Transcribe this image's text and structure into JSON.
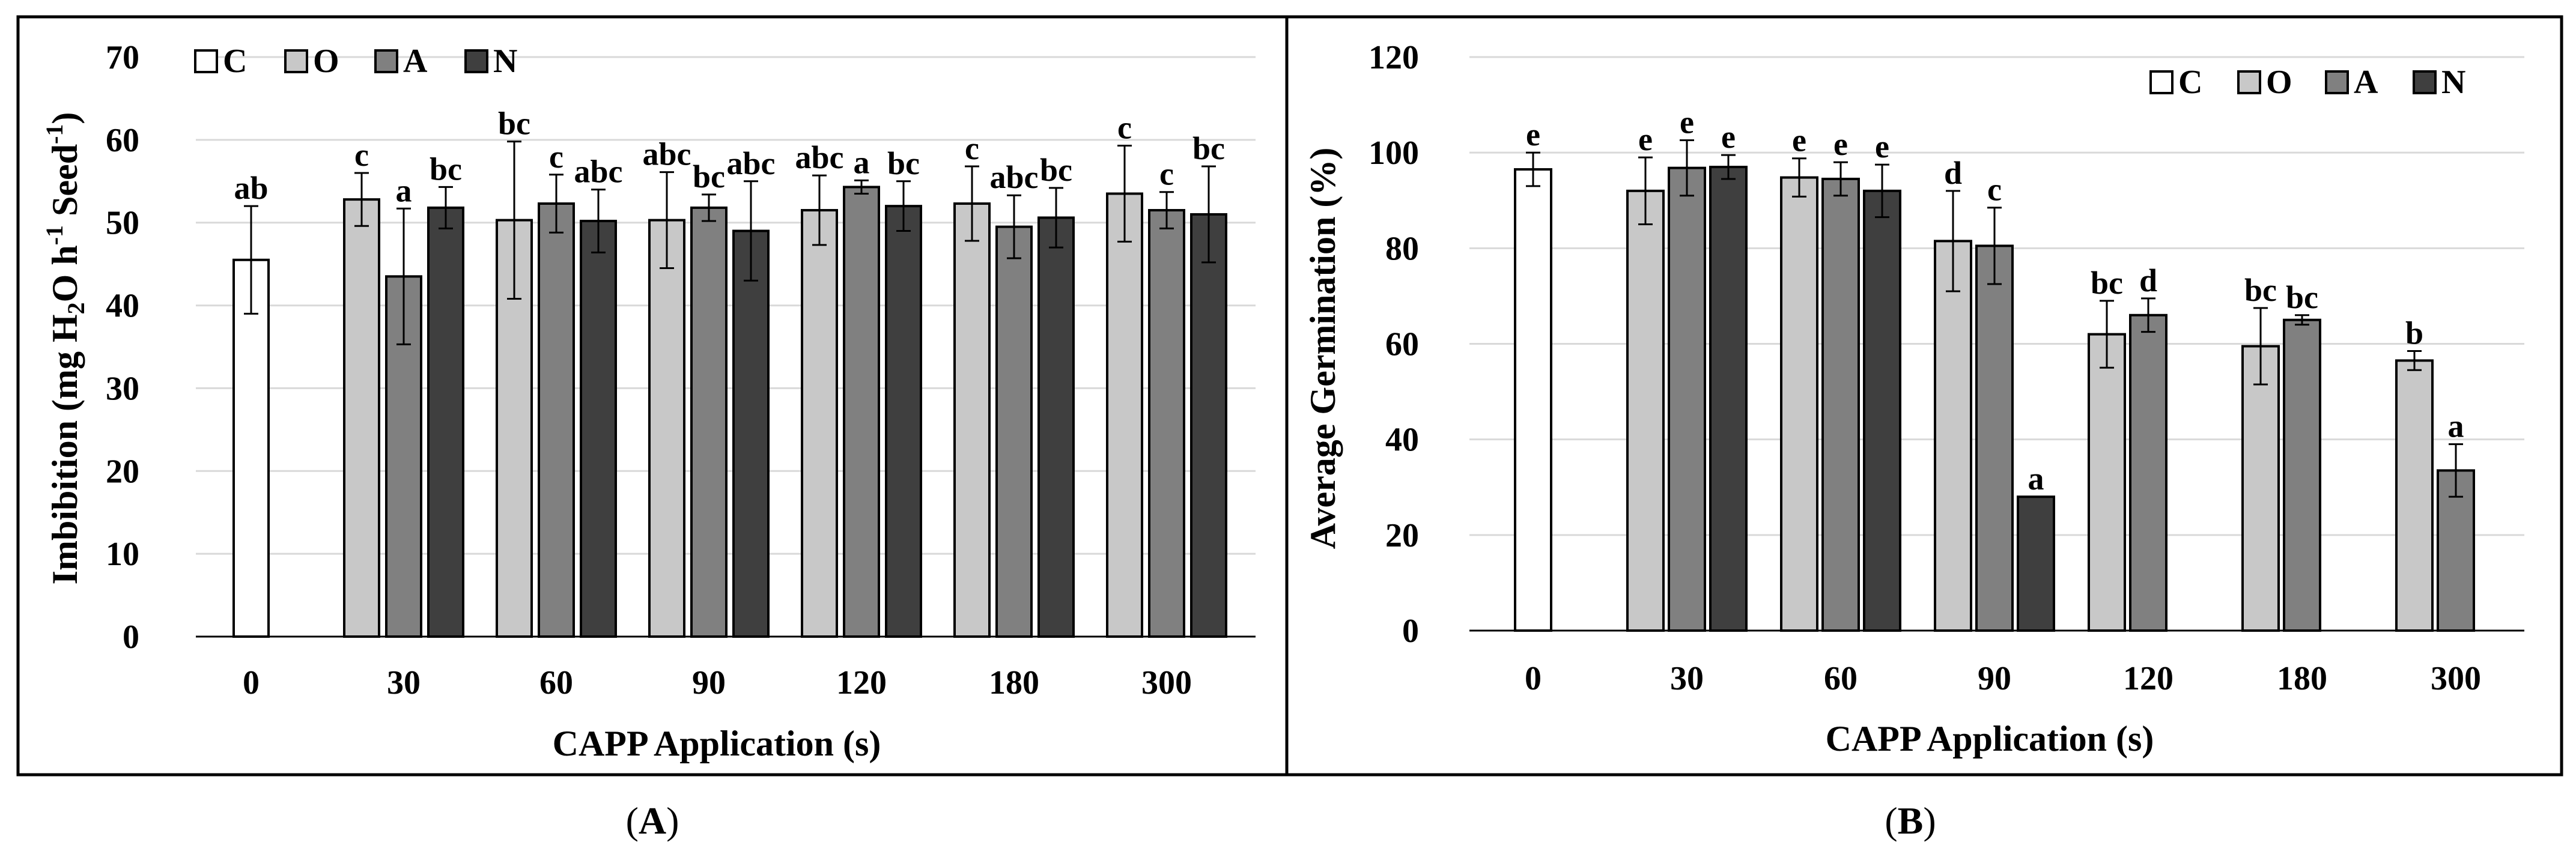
{
  "colors": {
    "C": "#ffffff",
    "O": "#c8c8c8",
    "A": "#808080",
    "N": "#3f3f3f",
    "grid": "#d9d9d9",
    "frame": "#000000"
  },
  "chart_data": [
    {
      "panel_label": "A",
      "type": "bar",
      "ylabel": "Imbibition (mg H2O h-1 Seed-1)",
      "ylabel_parts": {
        "a": "Imbibition (mg H",
        "b": "2",
        "c": "O h",
        "d": "-1",
        "e": " Seed",
        "f": "-1",
        "g": ")"
      },
      "xlabel": "CAPP Application (s)",
      "ylim": [
        0,
        70
      ],
      "yticks": [
        0,
        10,
        20,
        30,
        40,
        50,
        60,
        70
      ],
      "grid": true,
      "legend_placement": "top-left",
      "legend": [
        "C",
        "O",
        "A",
        "N"
      ],
      "categories": [
        "0",
        "30",
        "60",
        "90",
        "120",
        "180",
        "300"
      ],
      "bars": [
        {
          "cat": 0,
          "series": "C",
          "value": 45.5,
          "err": 6.5,
          "label": "ab"
        },
        {
          "cat": 1,
          "series": "O",
          "value": 52.8,
          "err": 3.2,
          "label": "c"
        },
        {
          "cat": 1,
          "series": "A",
          "value": 43.5,
          "err": 8.2,
          "label": "a"
        },
        {
          "cat": 1,
          "series": "N",
          "value": 51.8,
          "err": 2.5,
          "label": "bc"
        },
        {
          "cat": 2,
          "series": "O",
          "value": 50.3,
          "err": 9.5,
          "label": "bc"
        },
        {
          "cat": 2,
          "series": "A",
          "value": 52.3,
          "err": 3.5,
          "label": "c"
        },
        {
          "cat": 2,
          "series": "N",
          "value": 50.2,
          "err": 3.8,
          "label": "abc"
        },
        {
          "cat": 3,
          "series": "O",
          "value": 50.3,
          "err": 5.8,
          "label": "abc"
        },
        {
          "cat": 3,
          "series": "A",
          "value": 51.8,
          "err": 1.6,
          "label": "bc"
        },
        {
          "cat": 3,
          "series": "N",
          "value": 49.0,
          "err": 6.0,
          "label": "abc"
        },
        {
          "cat": 4,
          "series": "O",
          "value": 51.5,
          "err": 4.2,
          "label": "abc"
        },
        {
          "cat": 4,
          "series": "A",
          "value": 54.3,
          "err": 0.8,
          "label": "a"
        },
        {
          "cat": 4,
          "series": "N",
          "value": 52.0,
          "err": 3.0,
          "label": "bc"
        },
        {
          "cat": 5,
          "series": "O",
          "value": 52.3,
          "err": 4.5,
          "label": "c"
        },
        {
          "cat": 5,
          "series": "A",
          "value": 49.5,
          "err": 3.8,
          "label": "abc"
        },
        {
          "cat": 5,
          "series": "N",
          "value": 50.6,
          "err": 3.6,
          "label": "bc"
        },
        {
          "cat": 6,
          "series": "O",
          "value": 53.5,
          "err": 5.8,
          "label": "c"
        },
        {
          "cat": 6,
          "series": "A",
          "value": 51.5,
          "err": 2.2,
          "label": "c"
        },
        {
          "cat": 6,
          "series": "N",
          "value": 51.0,
          "err": 5.8,
          "label": "bc"
        }
      ]
    },
    {
      "panel_label": "B",
      "type": "bar",
      "ylabel": "Average Germination (%)",
      "xlabel": "CAPP Application (s)",
      "ylim": [
        0,
        120
      ],
      "yticks": [
        0,
        20,
        40,
        60,
        80,
        100,
        120
      ],
      "grid": true,
      "legend_placement": "top-right",
      "legend": [
        "C",
        "O",
        "A",
        "N"
      ],
      "categories": [
        "0",
        "30",
        "60",
        "90",
        "120",
        "180",
        "300"
      ],
      "bars": [
        {
          "cat": 0,
          "series": "C",
          "value": 96.5,
          "err": 3.5,
          "label": "e"
        },
        {
          "cat": 1,
          "series": "O",
          "value": 92.0,
          "err": 7.0,
          "label": "e"
        },
        {
          "cat": 1,
          "series": "A",
          "value": 96.8,
          "err": 5.8,
          "label": "e"
        },
        {
          "cat": 1,
          "series": "N",
          "value": 97.0,
          "err": 2.5,
          "label": "e"
        },
        {
          "cat": 2,
          "series": "O",
          "value": 94.8,
          "err": 4.0,
          "label": "e"
        },
        {
          "cat": 2,
          "series": "A",
          "value": 94.5,
          "err": 3.5,
          "label": "e"
        },
        {
          "cat": 2,
          "series": "N",
          "value": 92.0,
          "err": 5.5,
          "label": "e"
        },
        {
          "cat": 3,
          "series": "O",
          "value": 81.5,
          "err": 10.5,
          "label": "d"
        },
        {
          "cat": 3,
          "series": "A",
          "value": 80.5,
          "err": 8.0,
          "label": "c"
        },
        {
          "cat": 3,
          "series": "N",
          "value": 28.0,
          "err": 0.0,
          "label": "a"
        },
        {
          "cat": 4,
          "series": "O",
          "value": 62.0,
          "err": 7.0,
          "label": "bc"
        },
        {
          "cat": 4,
          "series": "A",
          "value": 66.0,
          "err": 3.5,
          "label": "d"
        },
        {
          "cat": 5,
          "series": "O",
          "value": 59.5,
          "err": 8.0,
          "label": "bc"
        },
        {
          "cat": 5,
          "series": "A",
          "value": 65.0,
          "err": 1.0,
          "label": "bc"
        },
        {
          "cat": 6,
          "series": "O",
          "value": 56.5,
          "err": 2.0,
          "label": "b"
        },
        {
          "cat": 6,
          "series": "A",
          "value": 33.5,
          "err": 5.5,
          "label": "a"
        }
      ]
    }
  ]
}
